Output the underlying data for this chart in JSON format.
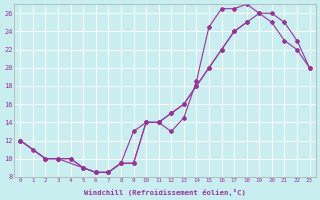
{
  "xlabel": "Windchill (Refroidissement éolien,°C)",
  "ylabel": "",
  "bg_color": "#c8eef0",
  "line_color": "#993399",
  "grid_color": "#ffffff",
  "xlim": [
    -0.5,
    23.5
  ],
  "ylim": [
    8,
    27
  ],
  "yticks": [
    8,
    10,
    12,
    14,
    16,
    18,
    20,
    22,
    24,
    26
  ],
  "xticks": [
    0,
    1,
    2,
    3,
    4,
    5,
    6,
    7,
    8,
    9,
    10,
    11,
    12,
    13,
    14,
    15,
    16,
    17,
    18,
    19,
    20,
    21,
    22,
    23
  ],
  "line1_x": [
    0,
    1,
    2,
    3,
    4,
    5,
    6,
    7,
    8,
    9,
    10,
    11,
    12,
    13,
    14,
    15,
    16,
    17,
    18,
    19,
    20,
    21,
    22,
    23
  ],
  "line1_y": [
    12,
    11,
    10,
    10,
    10,
    9,
    8.5,
    8.5,
    9.5,
    13,
    14,
    14,
    13,
    14.5,
    18.5,
    24.5,
    26.5,
    26.5,
    27,
    26,
    25,
    23,
    22,
    20
  ],
  "line2_x": [
    0,
    2,
    3,
    4,
    5,
    6,
    7,
    8,
    9,
    10,
    11,
    12,
    13,
    14,
    15,
    16,
    17,
    18,
    19,
    20,
    21,
    22,
    23
  ],
  "line2_y": [
    12,
    10,
    10,
    10,
    9,
    8.5,
    8.5,
    9.5,
    9.5,
    14,
    14,
    15,
    16,
    18,
    20,
    22,
    24,
    25,
    26,
    26,
    25,
    23,
    20
  ],
  "line3_x": [
    0,
    2,
    3,
    5,
    6,
    7,
    8,
    9,
    10,
    11,
    12,
    13,
    14,
    15,
    16,
    17,
    18
  ],
  "line3_y": [
    12,
    10,
    10,
    9,
    8.5,
    8.5,
    9.5,
    9.5,
    14,
    14,
    15,
    16,
    18,
    20,
    22,
    24,
    25
  ]
}
